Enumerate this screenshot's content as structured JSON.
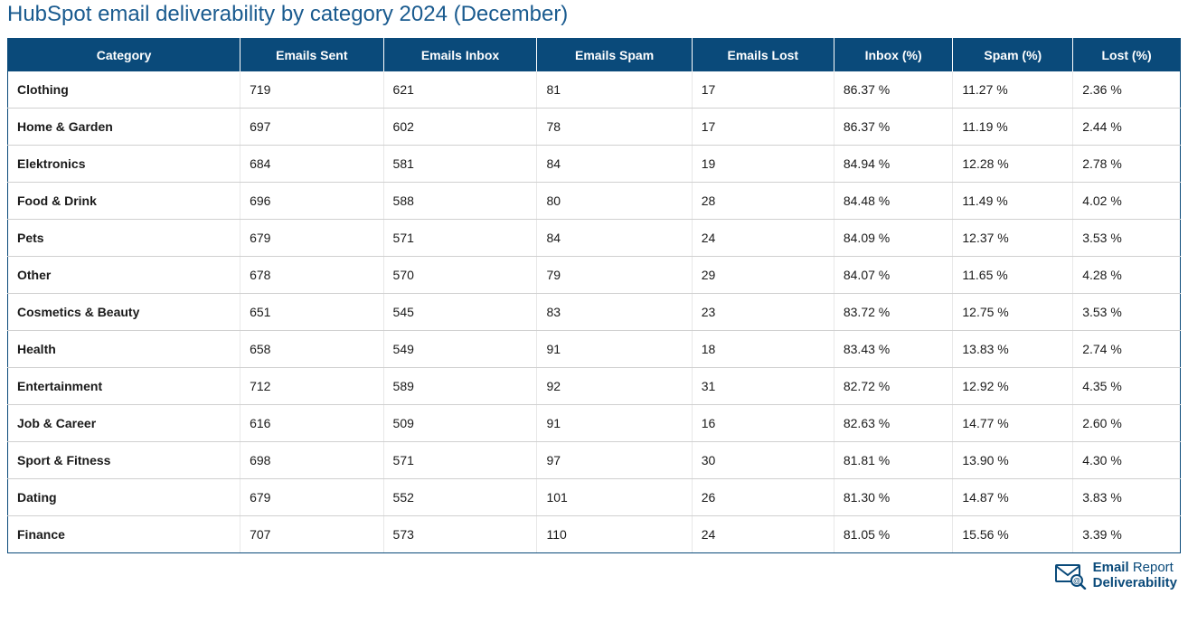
{
  "title": "HubSpot email deliverability by category 2024 (December)",
  "colors": {
    "header_bg": "#0a4a7a",
    "header_text": "#ffffff",
    "title_text": "#1a5b8f",
    "row_border": "#d0d0d0",
    "cell_text": "#1a1a1a"
  },
  "table": {
    "columns": [
      "Category",
      "Emails Sent",
      "Emails Inbox",
      "Emails Spam",
      "Emails Lost",
      "Inbox (%)",
      "Spam (%)",
      "Lost (%)"
    ],
    "rows": [
      [
        "Clothing",
        "719",
        "621",
        "81",
        "17",
        "86.37 %",
        "11.27 %",
        "2.36 %"
      ],
      [
        "Home & Garden",
        "697",
        "602",
        "78",
        "17",
        "86.37 %",
        "11.19 %",
        "2.44 %"
      ],
      [
        "Elektronics",
        "684",
        "581",
        "84",
        "19",
        "84.94 %",
        "12.28 %",
        "2.78 %"
      ],
      [
        "Food & Drink",
        "696",
        "588",
        "80",
        "28",
        "84.48 %",
        "11.49 %",
        "4.02 %"
      ],
      [
        "Pets",
        "679",
        "571",
        "84",
        "24",
        "84.09 %",
        "12.37 %",
        "3.53 %"
      ],
      [
        "Other",
        "678",
        "570",
        "79",
        "29",
        "84.07 %",
        "11.65 %",
        "4.28 %"
      ],
      [
        "Cosmetics & Beauty",
        "651",
        "545",
        "83",
        "23",
        "83.72 %",
        "12.75 %",
        "3.53 %"
      ],
      [
        "Health",
        "658",
        "549",
        "91",
        "18",
        "83.43 %",
        "13.83 %",
        "2.74 %"
      ],
      [
        "Entertainment",
        "712",
        "589",
        "92",
        "31",
        "82.72 %",
        "12.92 %",
        "4.35 %"
      ],
      [
        "Job & Career",
        "616",
        "509",
        "91",
        "16",
        "82.63 %",
        "14.77 %",
        "2.60 %"
      ],
      [
        "Sport & Fitness",
        "698",
        "571",
        "97",
        "30",
        "81.81 %",
        "13.90 %",
        "4.30 %"
      ],
      [
        "Dating",
        "679",
        "552",
        "101",
        "26",
        "81.30 %",
        "14.87 %",
        "3.83 %"
      ],
      [
        "Finance",
        "707",
        "573",
        "110",
        "24",
        "81.05 %",
        "15.56 %",
        "3.39 %"
      ]
    ]
  },
  "logo": {
    "line1_bold": "Email",
    "line1_light": "Report",
    "line2": "Deliverability"
  }
}
